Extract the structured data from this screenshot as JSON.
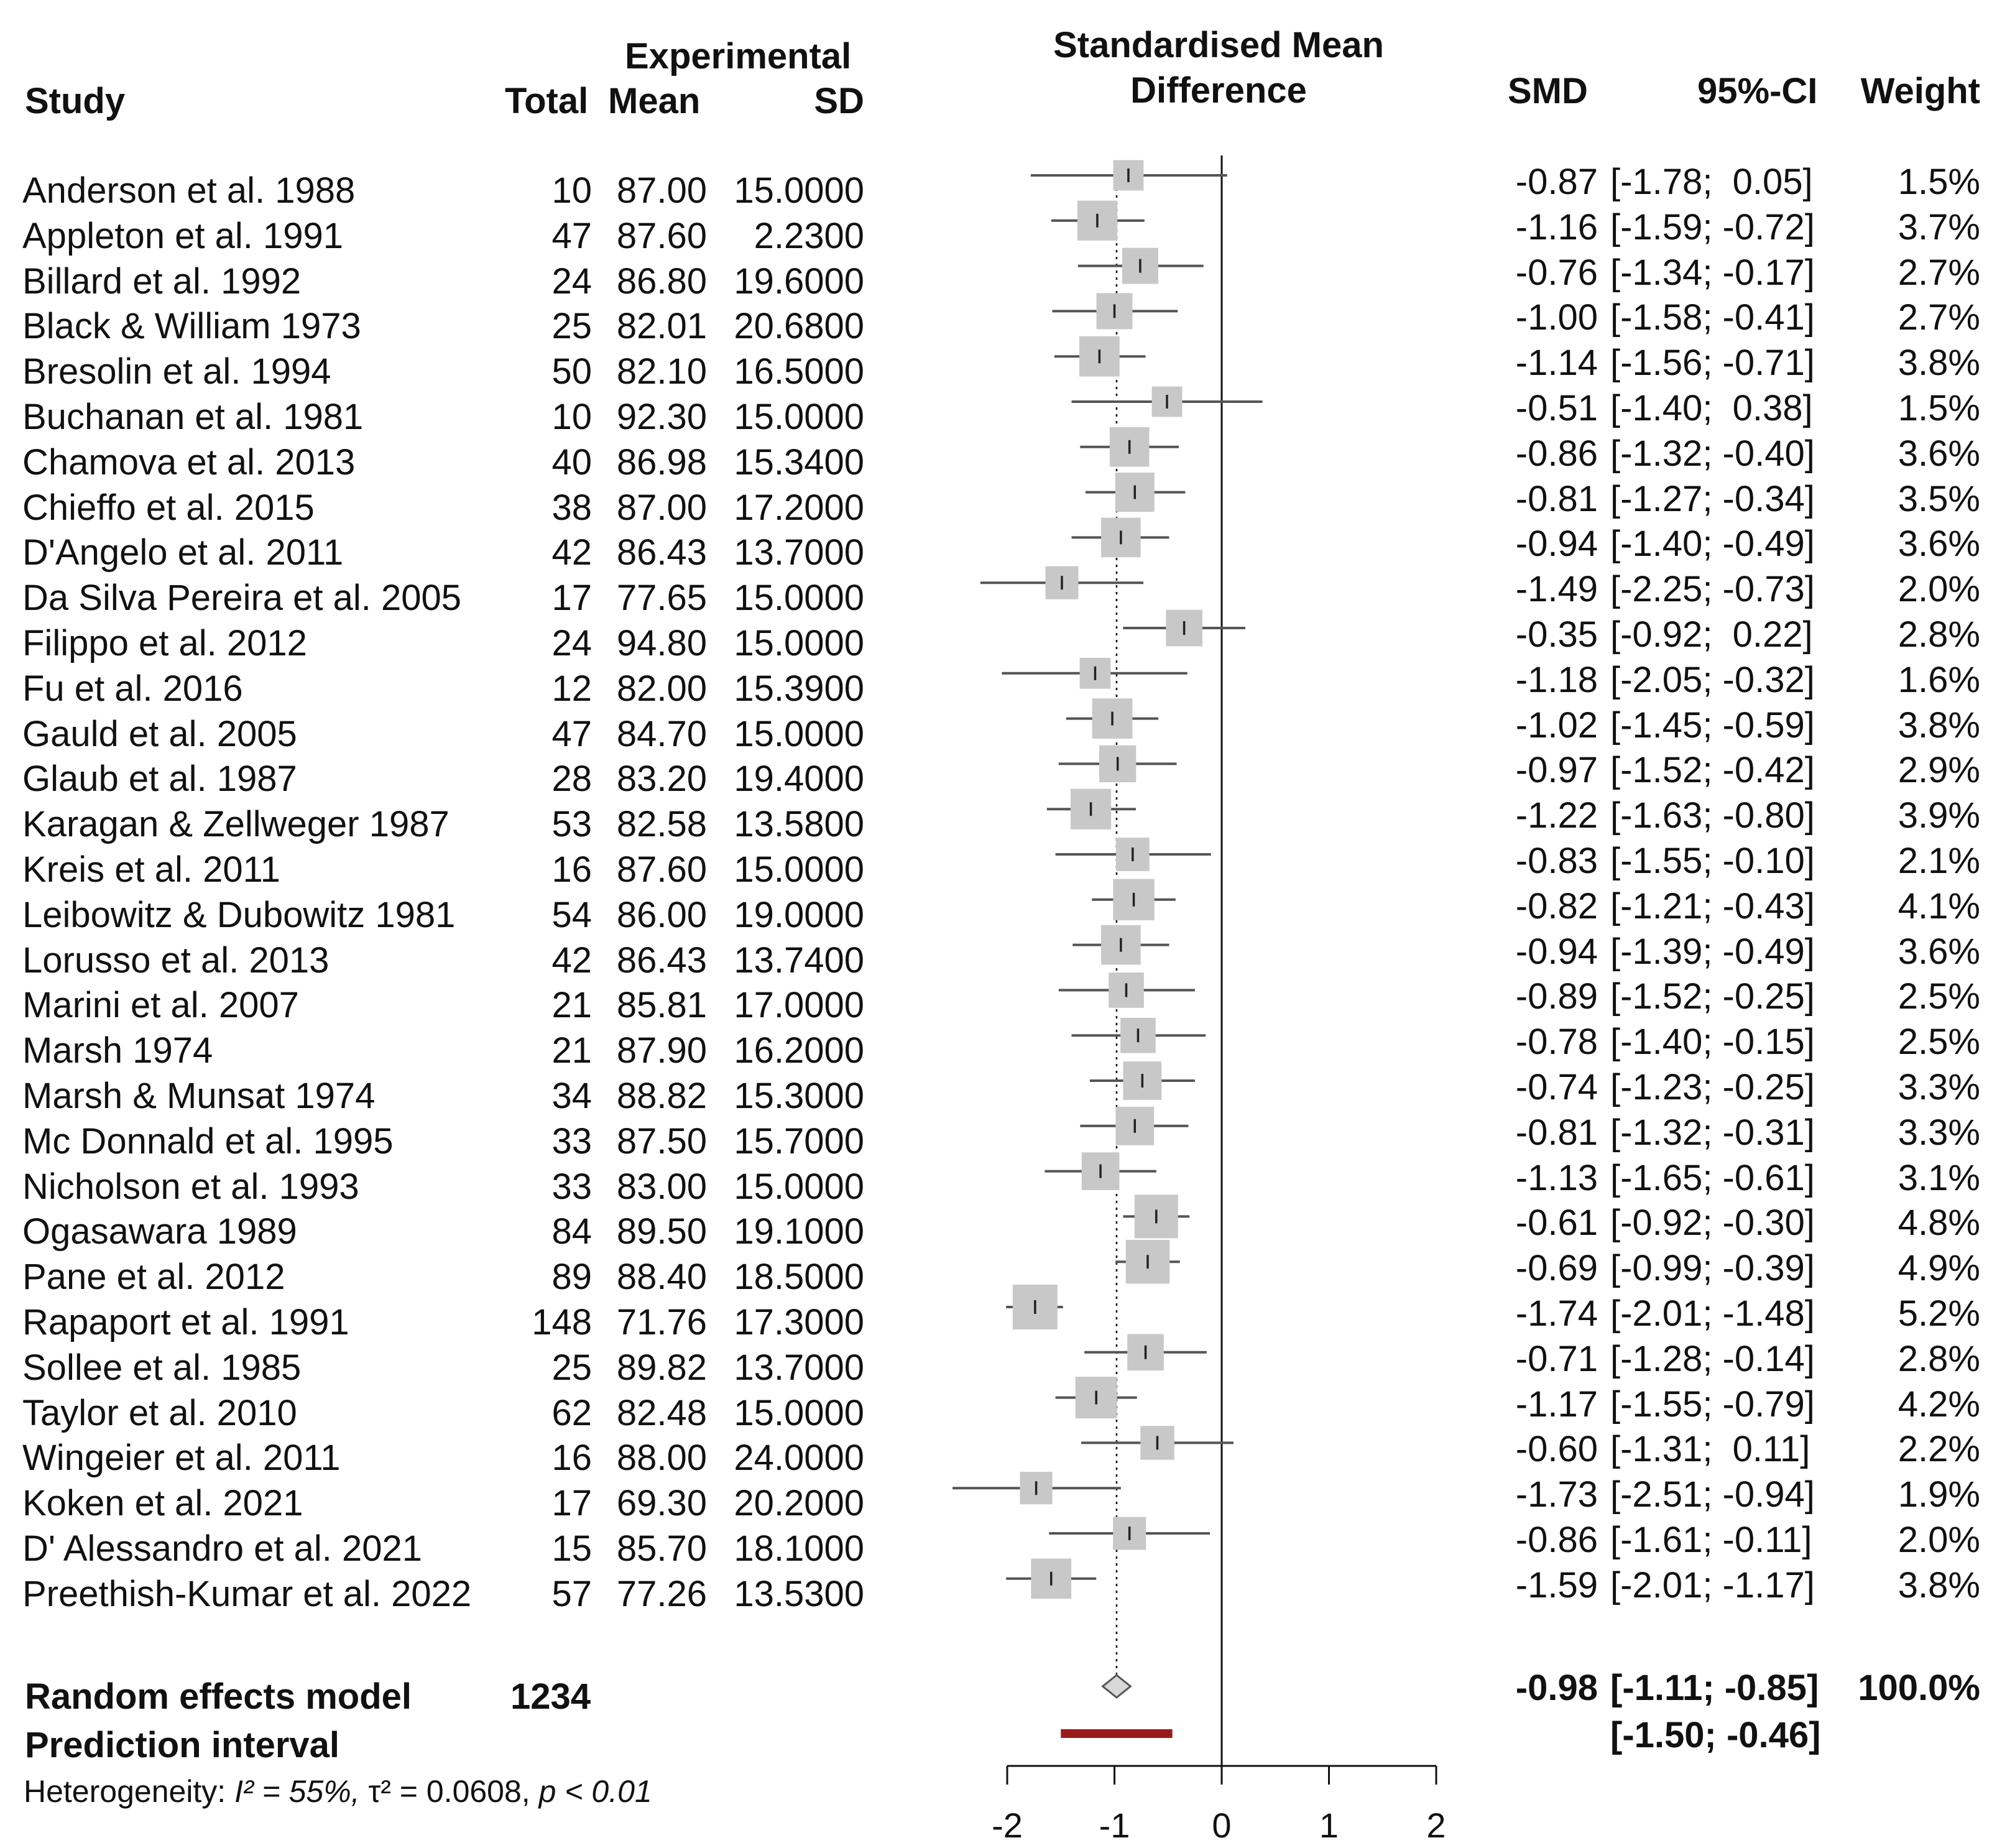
{
  "header": {
    "study": "Study",
    "experimental": "Experimental",
    "total": "Total",
    "mean": "Mean",
    "sd": "SD",
    "plot_title_line1": "Standardised Mean",
    "plot_title_line2": "Difference",
    "smd": "SMD",
    "ci": "95%-CI",
    "weight": "Weight"
  },
  "footer": {
    "random_label": "Random effects model",
    "random_total": "1234",
    "random_smd": "-0.98",
    "random_ci": "[-1.11; -0.85]",
    "random_weight": "100.0%",
    "prediction_label": "Prediction interval",
    "prediction_ci": "[-1.50; -0.46]",
    "heterogeneity_prefix": "Heterogeneity: ",
    "heterogeneity_i2": "I² = 55%, ",
    "heterogeneity_tau": "τ² = 0.0608, ",
    "heterogeneity_p": "p < 0.01"
  },
  "rows": [
    {
      "study": "Anderson et al. 1988",
      "total": "10",
      "mean": "87.00",
      "sd": "15.0000",
      "smd_text": "-0.87",
      "ci_text": "[-1.78;  0.05]",
      "weight_text": "1.5%"
    },
    {
      "study": "Appleton et al. 1991",
      "total": "47",
      "mean": "87.60",
      "sd": "2.2300",
      "smd_text": "-1.16",
      "ci_text": "[-1.59; -0.72]",
      "weight_text": "3.7%"
    },
    {
      "study": "Billard et al. 1992",
      "total": "24",
      "mean": "86.80",
      "sd": "19.6000",
      "smd_text": "-0.76",
      "ci_text": "[-1.34; -0.17]",
      "weight_text": "2.7%"
    },
    {
      "study": "Black & William 1973",
      "total": "25",
      "mean": "82.01",
      "sd": "20.6800",
      "smd_text": "-1.00",
      "ci_text": "[-1.58; -0.41]",
      "weight_text": "2.7%"
    },
    {
      "study": "Bresolin et al. 1994",
      "total": "50",
      "mean": "82.10",
      "sd": "16.5000",
      "smd_text": "-1.14",
      "ci_text": "[-1.56; -0.71]",
      "weight_text": "3.8%"
    },
    {
      "study": "Buchanan et al. 1981",
      "total": "10",
      "mean": "92.30",
      "sd": "15.0000",
      "smd_text": "-0.51",
      "ci_text": "[-1.40;  0.38]",
      "weight_text": "1.5%"
    },
    {
      "study": "Chamova et al. 2013",
      "total": "40",
      "mean": "86.98",
      "sd": "15.3400",
      "smd_text": "-0.86",
      "ci_text": "[-1.32; -0.40]",
      "weight_text": "3.6%"
    },
    {
      "study": "Chieffo et al. 2015",
      "total": "38",
      "mean": "87.00",
      "sd": "17.2000",
      "smd_text": "-0.81",
      "ci_text": "[-1.27; -0.34]",
      "weight_text": "3.5%"
    },
    {
      "study": "D'Angelo et al. 2011",
      "total": "42",
      "mean": "86.43",
      "sd": "13.7000",
      "smd_text": "-0.94",
      "ci_text": "[-1.40; -0.49]",
      "weight_text": "3.6%"
    },
    {
      "study": "Da Silva Pereira et al. 2005",
      "total": "17",
      "mean": "77.65",
      "sd": "15.0000",
      "smd_text": "-1.49",
      "ci_text": "[-2.25; -0.73]",
      "weight_text": "2.0%"
    },
    {
      "study": "Filippo et al. 2012",
      "total": "24",
      "mean": "94.80",
      "sd": "15.0000",
      "smd_text": "-0.35",
      "ci_text": "[-0.92;  0.22]",
      "weight_text": "2.8%"
    },
    {
      "study": "Fu et al. 2016",
      "total": "12",
      "mean": "82.00",
      "sd": "15.3900",
      "smd_text": "-1.18",
      "ci_text": "[-2.05; -0.32]",
      "weight_text": "1.6%"
    },
    {
      "study": "Gauld et al. 2005",
      "total": "47",
      "mean": "84.70",
      "sd": "15.0000",
      "smd_text": "-1.02",
      "ci_text": "[-1.45; -0.59]",
      "weight_text": "3.8%"
    },
    {
      "study": "Glaub et al. 1987",
      "total": "28",
      "mean": "83.20",
      "sd": "19.4000",
      "smd_text": "-0.97",
      "ci_text": "[-1.52; -0.42]",
      "weight_text": "2.9%"
    },
    {
      "study": "Karagan & Zellweger 1987",
      "total": "53",
      "mean": "82.58",
      "sd": "13.5800",
      "smd_text": "-1.22",
      "ci_text": "[-1.63; -0.80]",
      "weight_text": "3.9%"
    },
    {
      "study": "Kreis et al. 2011",
      "total": "16",
      "mean": "87.60",
      "sd": "15.0000",
      "smd_text": "-0.83",
      "ci_text": "[-1.55; -0.10]",
      "weight_text": "2.1%"
    },
    {
      "study": "Leibowitz & Dubowitz 1981",
      "total": "54",
      "mean": "86.00",
      "sd": "19.0000",
      "smd_text": "-0.82",
      "ci_text": "[-1.21; -0.43]",
      "weight_text": "4.1%"
    },
    {
      "study": "Lorusso et al. 2013",
      "total": "42",
      "mean": "86.43",
      "sd": "13.7400",
      "smd_text": "-0.94",
      "ci_text": "[-1.39; -0.49]",
      "weight_text": "3.6%"
    },
    {
      "study": "Marini et al. 2007",
      "total": "21",
      "mean": "85.81",
      "sd": "17.0000",
      "smd_text": "-0.89",
      "ci_text": "[-1.52; -0.25]",
      "weight_text": "2.5%"
    },
    {
      "study": "Marsh 1974",
      "total": "21",
      "mean": "87.90",
      "sd": "16.2000",
      "smd_text": "-0.78",
      "ci_text": "[-1.40; -0.15]",
      "weight_text": "2.5%"
    },
    {
      "study": "Marsh & Munsat 1974",
      "total": "34",
      "mean": "88.82",
      "sd": "15.3000",
      "smd_text": "-0.74",
      "ci_text": "[-1.23; -0.25]",
      "weight_text": "3.3%"
    },
    {
      "study": "Mc Donnald et al. 1995",
      "total": "33",
      "mean": "87.50",
      "sd": "15.7000",
      "smd_text": "-0.81",
      "ci_text": "[-1.32; -0.31]",
      "weight_text": "3.3%"
    },
    {
      "study": "Nicholson et al. 1993",
      "total": "33",
      "mean": "83.00",
      "sd": "15.0000",
      "smd_text": "-1.13",
      "ci_text": "[-1.65; -0.61]",
      "weight_text": "3.1%"
    },
    {
      "study": "Ogasawara 1989",
      "total": "84",
      "mean": "89.50",
      "sd": "19.1000",
      "smd_text": "-0.61",
      "ci_text": "[-0.92; -0.30]",
      "weight_text": "4.8%"
    },
    {
      "study": "Pane et al. 2012",
      "total": "89",
      "mean": "88.40",
      "sd": "18.5000",
      "smd_text": "-0.69",
      "ci_text": "[-0.99; -0.39]",
      "weight_text": "4.9%"
    },
    {
      "study": "Rapaport et al. 1991",
      "total": "148",
      "mean": "71.76",
      "sd": "17.3000",
      "smd_text": "-1.74",
      "ci_text": "[-2.01; -1.48]",
      "weight_text": "5.2%"
    },
    {
      "study": "Sollee et al. 1985",
      "total": "25",
      "mean": "89.82",
      "sd": "13.7000",
      "smd_text": "-0.71",
      "ci_text": "[-1.28; -0.14]",
      "weight_text": "2.8%"
    },
    {
      "study": "Taylor et al. 2010",
      "total": "62",
      "mean": "82.48",
      "sd": "15.0000",
      "smd_text": "-1.17",
      "ci_text": "[-1.55; -0.79]",
      "weight_text": "4.2%"
    },
    {
      "study": "Wingeier et al. 2011",
      "total": "16",
      "mean": "88.00",
      "sd": "24.0000",
      "smd_text": "-0.60",
      "ci_text": "[-1.31;  0.11]",
      "weight_text": "2.2%"
    },
    {
      "study": "Koken et al. 2021",
      "total": "17",
      "mean": "69.30",
      "sd": "20.2000",
      "smd_text": "-1.73",
      "ci_text": "[-2.51; -0.94]",
      "weight_text": "1.9%"
    },
    {
      "study": "D' Alessandro et al. 2021",
      "total": "15",
      "mean": "85.70",
      "sd": "18.1000",
      "smd_text": "-0.86",
      "ci_text": "[-1.61; -0.11]",
      "weight_text": "2.0%"
    },
    {
      "study": "Preethish-Kumar et al. 2022",
      "total": "57",
      "mean": "77.26",
      "sd": "13.5300",
      "smd_text": "-1.59",
      "ci_text": "[-2.01; -1.17]",
      "weight_text": "3.8%"
    }
  ],
  "chart_data": {
    "type": "forest",
    "title": "Standardised Mean Difference",
    "xlim": [
      -2,
      2
    ],
    "xticks": [
      -2,
      -1,
      0,
      1,
      2
    ],
    "xtick_labels": [
      "-2",
      "-1",
      "0",
      "1",
      "2"
    ],
    "null_line": 0,
    "pooled_line": -0.98,
    "series": [
      {
        "name": "Anderson et al. 1988",
        "smd": -0.87,
        "lower": -1.78,
        "upper": 0.05,
        "weight": 1.5
      },
      {
        "name": "Appleton et al. 1991",
        "smd": -1.16,
        "lower": -1.59,
        "upper": -0.72,
        "weight": 3.7
      },
      {
        "name": "Billard et al. 1992",
        "smd": -0.76,
        "lower": -1.34,
        "upper": -0.17,
        "weight": 2.7
      },
      {
        "name": "Black & William 1973",
        "smd": -1.0,
        "lower": -1.58,
        "upper": -0.41,
        "weight": 2.7
      },
      {
        "name": "Bresolin et al. 1994",
        "smd": -1.14,
        "lower": -1.56,
        "upper": -0.71,
        "weight": 3.8
      },
      {
        "name": "Buchanan et al. 1981",
        "smd": -0.51,
        "lower": -1.4,
        "upper": 0.38,
        "weight": 1.5
      },
      {
        "name": "Chamova et al. 2013",
        "smd": -0.86,
        "lower": -1.32,
        "upper": -0.4,
        "weight": 3.6
      },
      {
        "name": "Chieffo et al. 2015",
        "smd": -0.81,
        "lower": -1.27,
        "upper": -0.34,
        "weight": 3.5
      },
      {
        "name": "D'Angelo et al. 2011",
        "smd": -0.94,
        "lower": -1.4,
        "upper": -0.49,
        "weight": 3.6
      },
      {
        "name": "Da Silva Pereira et al. 2005",
        "smd": -1.49,
        "lower": -2.25,
        "upper": -0.73,
        "weight": 2.0
      },
      {
        "name": "Filippo et al. 2012",
        "smd": -0.35,
        "lower": -0.92,
        "upper": 0.22,
        "weight": 2.8
      },
      {
        "name": "Fu et al. 2016",
        "smd": -1.18,
        "lower": -2.05,
        "upper": -0.32,
        "weight": 1.6
      },
      {
        "name": "Gauld et al. 2005",
        "smd": -1.02,
        "lower": -1.45,
        "upper": -0.59,
        "weight": 3.8
      },
      {
        "name": "Glaub et al. 1987",
        "smd": -0.97,
        "lower": -1.52,
        "upper": -0.42,
        "weight": 2.9
      },
      {
        "name": "Karagan & Zellweger 1987",
        "smd": -1.22,
        "lower": -1.63,
        "upper": -0.8,
        "weight": 3.9
      },
      {
        "name": "Kreis et al. 2011",
        "smd": -0.83,
        "lower": -1.55,
        "upper": -0.1,
        "weight": 2.1
      },
      {
        "name": "Leibowitz & Dubowitz 1981",
        "smd": -0.82,
        "lower": -1.21,
        "upper": -0.43,
        "weight": 4.1
      },
      {
        "name": "Lorusso et al. 2013",
        "smd": -0.94,
        "lower": -1.39,
        "upper": -0.49,
        "weight": 3.6
      },
      {
        "name": "Marini et al. 2007",
        "smd": -0.89,
        "lower": -1.52,
        "upper": -0.25,
        "weight": 2.5
      },
      {
        "name": "Marsh 1974",
        "smd": -0.78,
        "lower": -1.4,
        "upper": -0.15,
        "weight": 2.5
      },
      {
        "name": "Marsh & Munsat 1974",
        "smd": -0.74,
        "lower": -1.23,
        "upper": -0.25,
        "weight": 3.3
      },
      {
        "name": "Mc Donnald et al. 1995",
        "smd": -0.81,
        "lower": -1.32,
        "upper": -0.31,
        "weight": 3.3
      },
      {
        "name": "Nicholson et al. 1993",
        "smd": -1.13,
        "lower": -1.65,
        "upper": -0.61,
        "weight": 3.1
      },
      {
        "name": "Ogasawara 1989",
        "smd": -0.61,
        "lower": -0.92,
        "upper": -0.3,
        "weight": 4.8
      },
      {
        "name": "Pane et al. 2012",
        "smd": -0.69,
        "lower": -0.99,
        "upper": -0.39,
        "weight": 4.9
      },
      {
        "name": "Rapaport et al. 1991",
        "smd": -1.74,
        "lower": -2.01,
        "upper": -1.48,
        "weight": 5.2
      },
      {
        "name": "Sollee et al. 1985",
        "smd": -0.71,
        "lower": -1.28,
        "upper": -0.14,
        "weight": 2.8
      },
      {
        "name": "Taylor et al. 2010",
        "smd": -1.17,
        "lower": -1.55,
        "upper": -0.79,
        "weight": 4.2
      },
      {
        "name": "Wingeier et al. 2011",
        "smd": -0.6,
        "lower": -1.31,
        "upper": 0.11,
        "weight": 2.2
      },
      {
        "name": "Koken et al. 2021",
        "smd": -1.73,
        "lower": -2.51,
        "upper": -0.94,
        "weight": 1.9
      },
      {
        "name": "D' Alessandro et al. 2021",
        "smd": -0.86,
        "lower": -1.61,
        "upper": -0.11,
        "weight": 2.0
      },
      {
        "name": "Preethish-Kumar et al. 2022",
        "smd": -1.59,
        "lower": -2.01,
        "upper": -1.17,
        "weight": 3.8
      }
    ],
    "pooled": {
      "smd": -0.98,
      "lower": -1.11,
      "upper": -0.85,
      "weight": 100.0
    },
    "prediction_interval": {
      "lower": -1.5,
      "upper": -0.46
    },
    "colors": {
      "box": "#c8c8c8",
      "line": "#555555",
      "axis": "#111111",
      "prediction": "#9b1b1b",
      "diamond_fill": "#d8d8d8",
      "diamond_stroke": "#555555"
    }
  }
}
